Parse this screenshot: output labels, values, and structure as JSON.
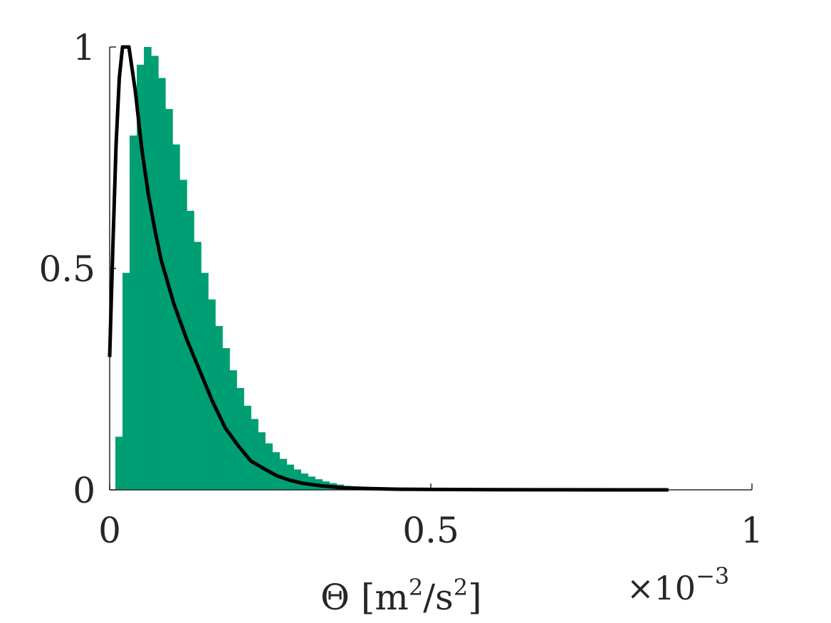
{
  "chart_data": {
    "type": "bar",
    "xlabel": {
      "symbol": "Θ",
      "unit_pre": "[m",
      "unit_exp1": "2",
      "unit_mid": "/s",
      "unit_exp2": "2",
      "unit_post": "]"
    },
    "x_exponent": {
      "base": "×10",
      "power": "−3"
    },
    "xlim": [
      0,
      1
    ],
    "ylim": [
      0,
      1
    ],
    "x_ticks": [
      {
        "value": 0,
        "label": "0"
      },
      {
        "value": 0.5,
        "label": "0.5"
      },
      {
        "value": 1,
        "label": "1"
      }
    ],
    "y_ticks": [
      {
        "value": 0,
        "label": "0"
      },
      {
        "value": 0.5,
        "label": "0.5"
      },
      {
        "value": 1,
        "label": "1"
      }
    ],
    "histogram": {
      "color": "#009E73",
      "bin_width": 0.0111,
      "bin_start": 0.0089,
      "values": [
        0.12,
        0.49,
        0.8,
        0.96,
        1.0,
        0.98,
        0.93,
        0.86,
        0.78,
        0.7,
        0.63,
        0.56,
        0.49,
        0.43,
        0.37,
        0.32,
        0.27,
        0.23,
        0.19,
        0.16,
        0.13,
        0.105,
        0.085,
        0.07,
        0.057,
        0.046,
        0.037,
        0.03,
        0.024,
        0.019,
        0.015,
        0.012,
        0.009,
        0.007,
        0.005,
        0.004,
        0.003,
        0.002
      ]
    },
    "fit_curve": {
      "color": "#000000",
      "x": [
        0.0,
        0.005,
        0.01,
        0.015,
        0.02,
        0.025,
        0.03,
        0.04,
        0.05,
        0.06,
        0.07,
        0.08,
        0.09,
        0.1,
        0.12,
        0.14,
        0.16,
        0.18,
        0.2,
        0.22,
        0.24,
        0.26,
        0.28,
        0.3,
        0.33,
        0.36,
        0.4,
        0.45,
        0.5,
        0.6,
        0.7,
        0.8,
        0.87
      ],
      "y": [
        0.3,
        0.55,
        0.78,
        0.93,
        1.0,
        1.0,
        1.0,
        0.9,
        0.77,
        0.67,
        0.59,
        0.52,
        0.47,
        0.42,
        0.34,
        0.27,
        0.2,
        0.14,
        0.1,
        0.065,
        0.048,
        0.032,
        0.022,
        0.015,
        0.009,
        0.005,
        0.003,
        0.0015,
        0.001,
        0.0005,
        0.0002,
        0.0001,
        0.0
      ]
    }
  }
}
